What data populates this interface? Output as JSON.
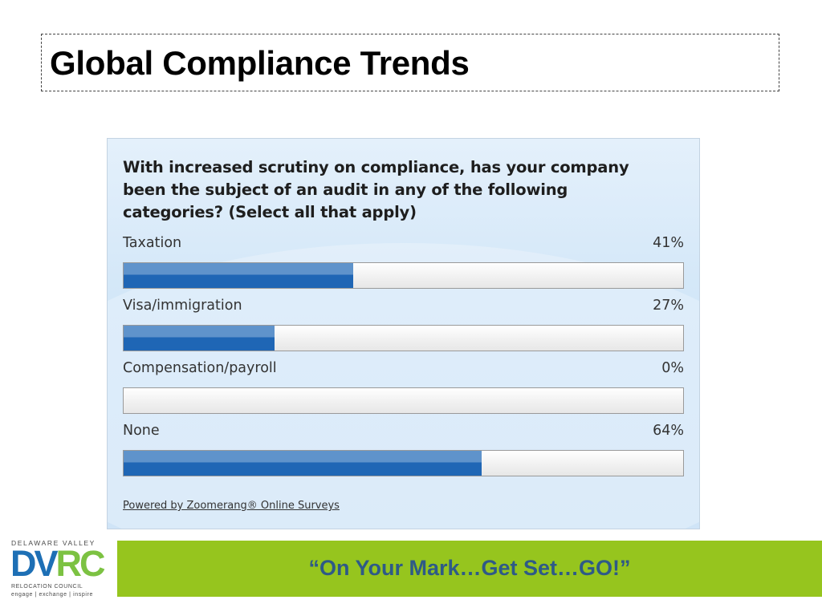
{
  "slide": {
    "title": "Global Compliance Trends",
    "footer_text": "“On Your Mark…Get Set…GO!”"
  },
  "logo": {
    "top_text": "DELAWARE VALLEY",
    "letters_blue": "DV",
    "letters_green": "RC",
    "subtitle": "RELOCATION COUNCIL",
    "tagline": "engage | exchange | inspire"
  },
  "survey": {
    "question": "With increased scrutiny on compliance, has your company been the subject of an audit in any of the following categories? (Select all that apply)",
    "powered_by": "Powered by Zoomerang® Online Surveys"
  },
  "chart_data": {
    "type": "bar",
    "orientation": "horizontal",
    "categories": [
      "Taxation",
      "Visa/immigration",
      "Compensation/payroll",
      "None"
    ],
    "values": [
      41,
      27,
      0,
      64
    ],
    "value_labels": [
      "41%",
      "27%",
      "0%",
      "64%"
    ],
    "xlim": [
      0,
      100
    ],
    "grid": false,
    "colors": {
      "bar": "#1f66b5",
      "bar_highlight": "#5f93cb",
      "track": "#eeeeee"
    }
  },
  "colors": {
    "logo_blue": "#1d6fb5",
    "logo_green": "#7cc242",
    "footer_band": "#96c51e",
    "footer_text": "#2e5a87"
  }
}
